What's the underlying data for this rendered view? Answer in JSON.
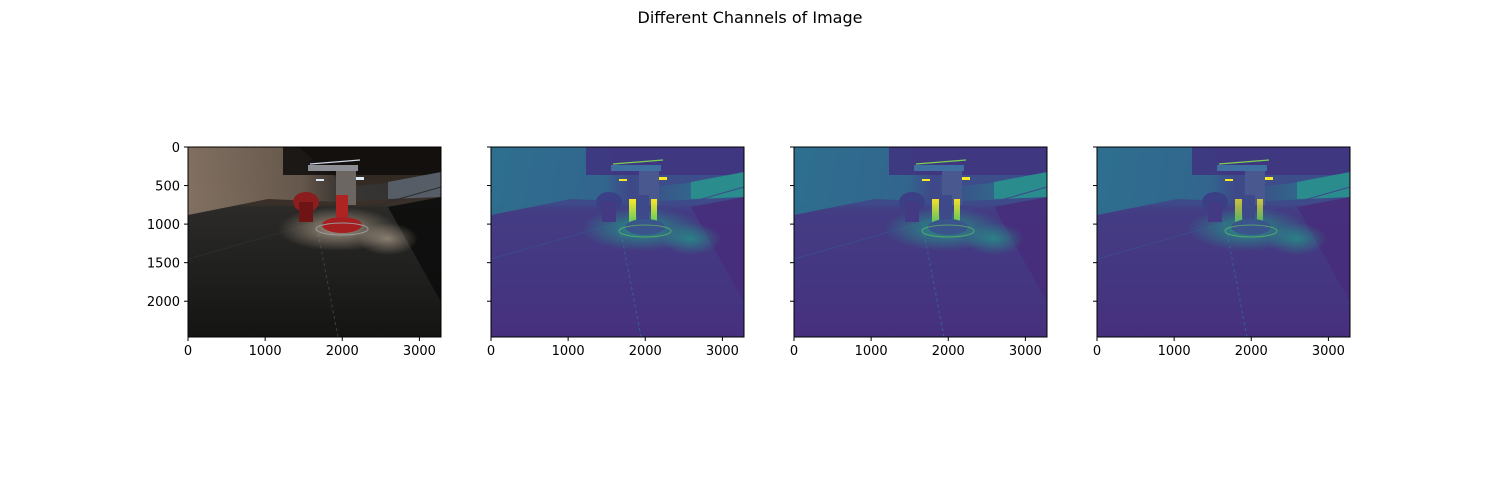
{
  "title": "Different Channels of Image",
  "chart_data": {
    "type": "heatmap",
    "title": "Different Channels of Image",
    "panels": [
      {
        "name": "",
        "colormap": "rgb",
        "show_y_tick_labels": true
      },
      {
        "name": "",
        "colormap": "viridis",
        "show_y_tick_labels": false
      },
      {
        "name": "",
        "colormap": "viridis",
        "show_y_tick_labels": false
      },
      {
        "name": "",
        "colormap": "viridis",
        "show_y_tick_labels": false
      }
    ],
    "x_ticks": [
      0,
      1000,
      2000,
      3000
    ],
    "y_ticks": [
      0,
      500,
      1000,
      1500,
      2000
    ],
    "xlim": [
      0,
      3280
    ],
    "ylim": [
      2464,
      0
    ],
    "sharey": true
  }
}
